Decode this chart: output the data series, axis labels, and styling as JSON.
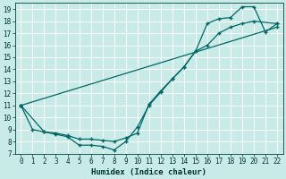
{
  "xlabel": "Humidex (Indice chaleur)",
  "bg_color": "#c8ebe8",
  "grid_color": "#ffffff",
  "line_color": "#006666",
  "xlim": [
    -0.5,
    22.5
  ],
  "ylim": [
    7,
    19.5
  ],
  "yticks": [
    7,
    8,
    9,
    10,
    11,
    12,
    13,
    14,
    15,
    16,
    17,
    18,
    19
  ],
  "xticks": [
    0,
    1,
    2,
    3,
    4,
    5,
    6,
    7,
    8,
    9,
    10,
    11,
    12,
    13,
    14,
    15,
    16,
    17,
    18,
    19,
    20,
    21,
    22
  ],
  "line1_x": [
    0,
    1,
    2,
    3,
    4,
    5,
    6,
    7,
    8,
    9,
    10,
    11,
    12,
    13,
    14,
    15,
    16,
    17,
    18,
    19,
    20,
    21,
    22
  ],
  "line1_y": [
    11.0,
    9.0,
    8.8,
    8.6,
    8.4,
    7.7,
    7.7,
    7.6,
    7.3,
    8.0,
    9.2,
    11.0,
    12.1,
    13.2,
    14.2,
    15.5,
    17.8,
    18.2,
    18.3,
    19.2,
    19.2,
    17.1,
    17.8
  ],
  "line2_x": [
    0,
    2,
    3,
    4,
    5,
    6,
    7,
    8,
    9,
    10,
    11,
    12,
    13,
    14,
    15,
    16,
    17,
    18,
    19,
    20,
    22
  ],
  "line2_y": [
    11.0,
    8.8,
    8.7,
    8.5,
    8.2,
    8.2,
    8.1,
    8.0,
    8.3,
    8.7,
    11.1,
    12.2,
    13.2,
    14.2,
    15.5,
    16.0,
    17.0,
    17.5,
    17.8,
    18.0,
    17.8
  ],
  "line3_x": [
    0,
    22
  ],
  "line3_y": [
    11.0,
    17.5
  ]
}
